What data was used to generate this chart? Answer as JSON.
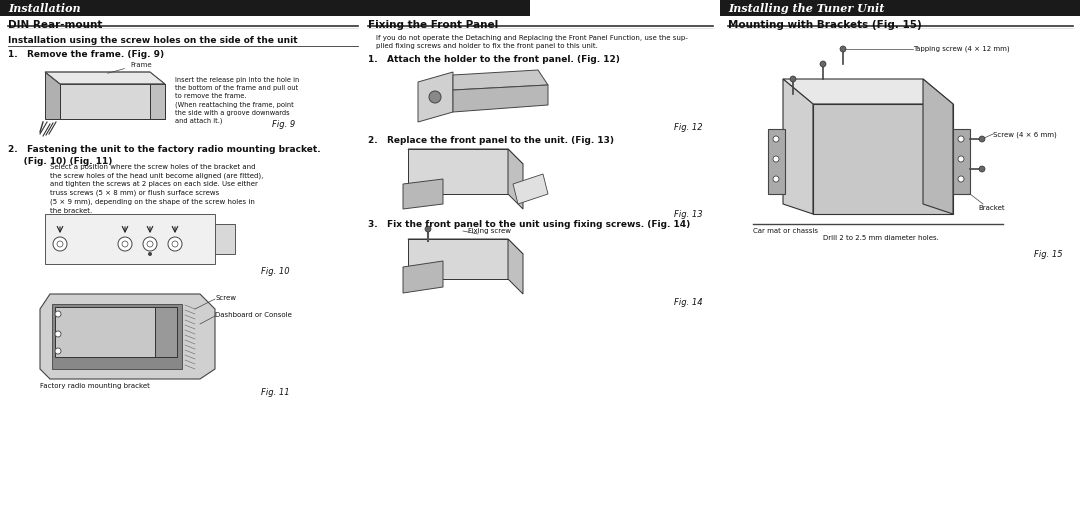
{
  "bg_color": "#ffffff",
  "header_bg": "#1a1a1a",
  "header_text_color": "#ffffff",
  "body_text_color": "#111111",
  "left_header": "Installation",
  "right_header": "Installing the Tuner Unit",
  "col1_title": "DIN Rear-mount",
  "col2_title": "Fixing the Front Panel",
  "col3_title": "Mounting with Brackets (Fig. 15)",
  "col1_sub": "Installation using the screw holes on the side of the unit",
  "col1_step1": "1.   Remove the frame. (Fig. 9)",
  "col1_step2_title": "2.   Fastening the unit to the factory radio mounting bracket.\n     (Fig. 10) (Fig. 11)",
  "col1_fig9_note": "Insert the release pin into the hole in\nthe bottom of the frame and pull out\nto remove the frame.\n(When reattaching the frame, point\nthe side with a groove downwards\nand attach it.)",
  "col1_frame_label": "Frame",
  "col1_fig9_caption": "Fig. 9",
  "col1_fig10_caption": "Fig. 10",
  "col1_fig11_caption": "Fig. 11",
  "col1_step2_body": "Select a position where the screw holes of the bracket and\nthe screw holes of the head unit become aligned (are fitted),\nand tighten the screws at 2 places on each side. Use either\ntruss screws (5 × 8 mm) or flush surface screws\n(5 × 9 mm), depending on the shape of the screw holes in\nthe bracket.",
  "col1_screw_label": "Screw",
  "col1_dash_label": "Dashboard or Console",
  "col1_bracket_label": "Factory radio mounting bracket",
  "col2_intro": "If you do not operate the Detaching and Replacing the Front Panel Function, use the sup-\nplied fixing screws and holder to fix the front panel to this unit.",
  "col2_step1": "1.   Attach the holder to the front panel. (Fig. 12)",
  "col2_step2": "2.   Replace the front panel to the unit. (Fig. 13)",
  "col2_step3": "3.   Fix the front panel to the unit using fixing screws. (Fig. 14)",
  "col2_fig12_caption": "Fig. 12",
  "col2_fig13_caption": "Fig. 13",
  "col2_fixing_label": "Fixing screw",
  "col2_fig14_caption": "Fig. 14",
  "col3_tapping_label": "Tapping screw (4 × 12 mm)",
  "col3_screw_label": "Screw (4 × 6 mm)",
  "col3_bracket_label": "Bracket",
  "col3_car_label": "Car mat or chassis",
  "col3_drill_label": "Drill 2 to 2.5 mm diameter holes.",
  "col3_fig15_caption": "Fig. 15"
}
